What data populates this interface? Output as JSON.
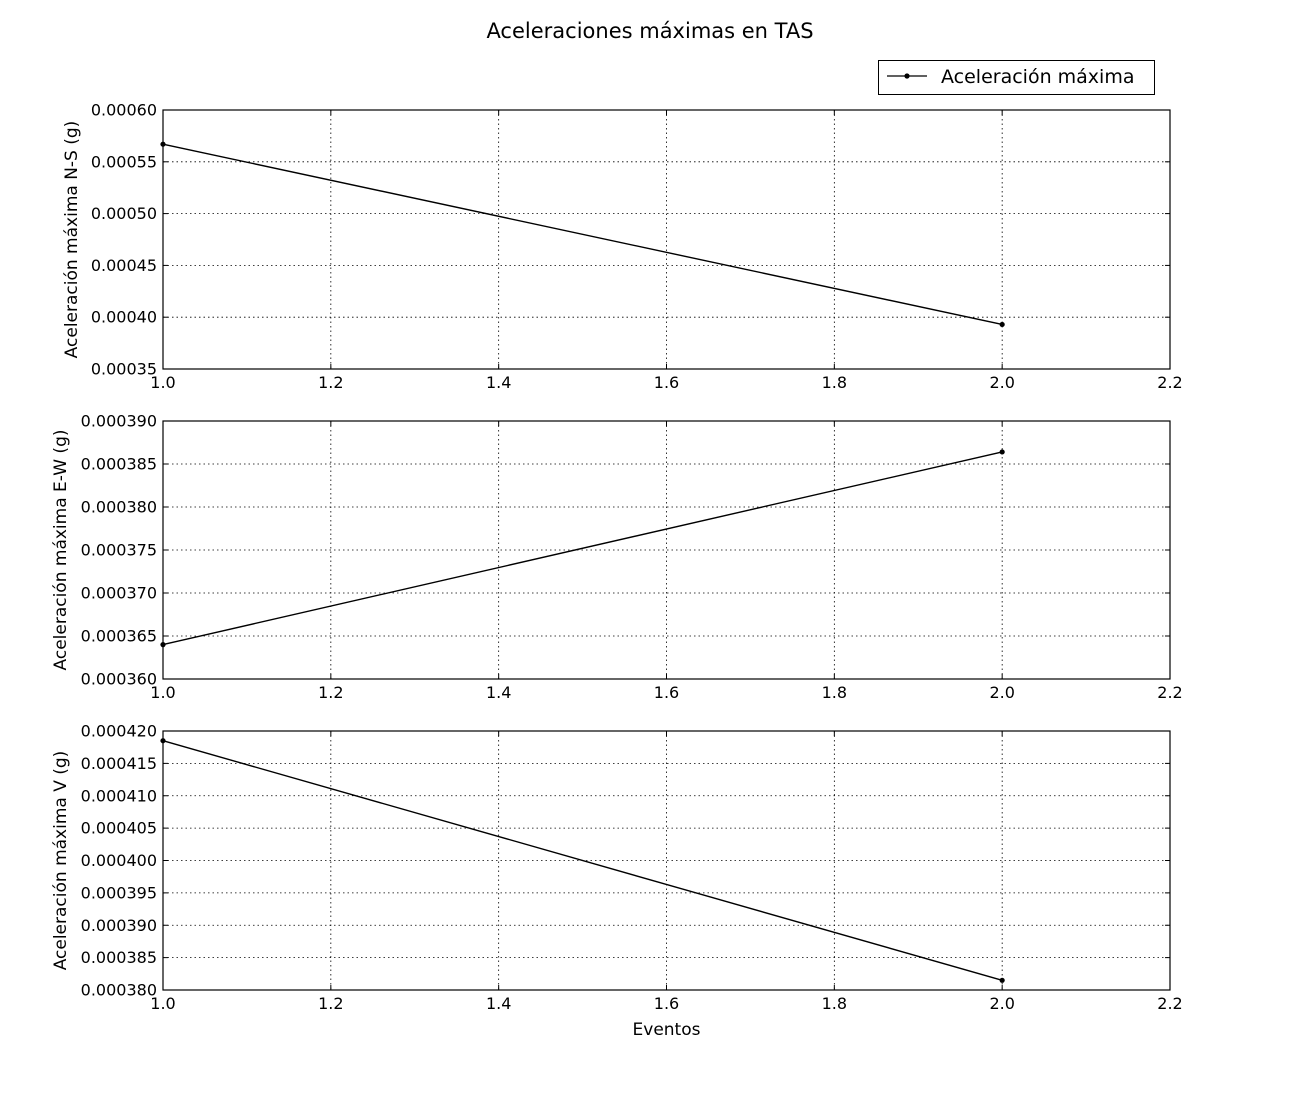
{
  "figure": {
    "title": "Aceleraciones máximas en TAS",
    "legend": {
      "label": "Aceleración máxima",
      "placement": "top-right",
      "marker": "point-line"
    },
    "line_color": "#000000",
    "grid": true
  },
  "chart_data": [
    {
      "type": "line",
      "name": "ns",
      "ylabel": "Aceleración máxima N-S (g)",
      "xlabel": "",
      "xlim": [
        1.0,
        2.2
      ],
      "ylim": [
        0.00035,
        0.0006
      ],
      "x_ticks": [
        "1.0",
        "1.2",
        "1.4",
        "1.6",
        "1.8",
        "2.0",
        "2.2"
      ],
      "y_ticks": [
        "0.00035",
        "0.00040",
        "0.00045",
        "0.00050",
        "0.00055",
        "0.00060"
      ],
      "series": [
        {
          "name": "Aceleración máxima",
          "x": [
            1.0,
            2.0
          ],
          "y": [
            0.000567,
            0.000393
          ]
        }
      ]
    },
    {
      "type": "line",
      "name": "ew",
      "ylabel": "Aceleración máxima E-W (g)",
      "xlabel": "",
      "xlim": [
        1.0,
        2.2
      ],
      "ylim": [
        0.00036,
        0.00039
      ],
      "x_ticks": [
        "1.0",
        "1.2",
        "1.4",
        "1.6",
        "1.8",
        "2.0",
        "2.2"
      ],
      "y_ticks": [
        "0.000360",
        "0.000365",
        "0.000370",
        "0.000375",
        "0.000380",
        "0.000385",
        "0.000390"
      ],
      "series": [
        {
          "name": "Aceleración máxima",
          "x": [
            1.0,
            2.0
          ],
          "y": [
            0.000364,
            0.0003864
          ]
        }
      ]
    },
    {
      "type": "line",
      "name": "v",
      "ylabel": "Aceleración máxima V (g)",
      "xlabel": "Eventos",
      "xlim": [
        1.0,
        2.2
      ],
      "ylim": [
        0.00038,
        0.00042
      ],
      "x_ticks": [
        "1.0",
        "1.2",
        "1.4",
        "1.6",
        "1.8",
        "2.0",
        "2.2"
      ],
      "y_ticks": [
        "0.000380",
        "0.000385",
        "0.000390",
        "0.000395",
        "0.000400",
        "0.000405",
        "0.000410",
        "0.000415",
        "0.000420"
      ],
      "series": [
        {
          "name": "Aceleración máxima",
          "x": [
            1.0,
            2.0
          ],
          "y": [
            0.0004185,
            0.0003815
          ]
        }
      ]
    }
  ]
}
